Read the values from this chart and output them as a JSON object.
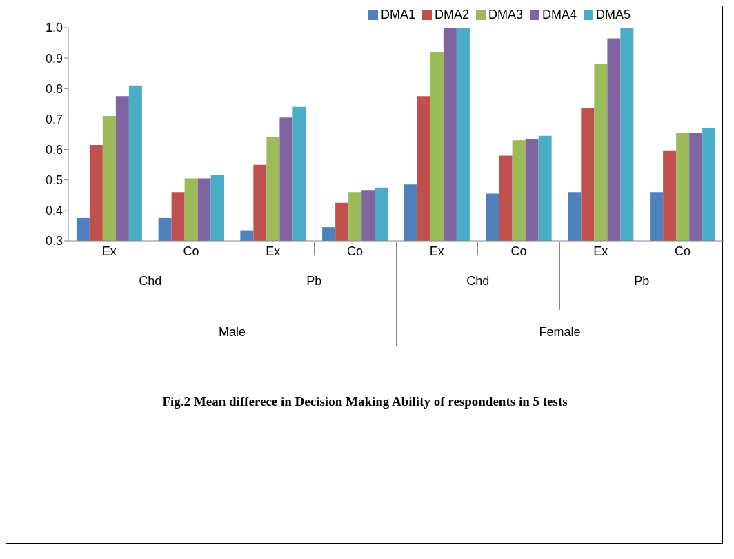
{
  "chart_data": {
    "type": "bar",
    "categories": [
      "Ex",
      "Co",
      "Ex",
      "Co",
      "Ex",
      "Co",
      "Ex",
      "Co"
    ],
    "series": [
      {
        "name": "DMA1",
        "color": "#4f81bd",
        "values": [
          0.375,
          0.375,
          0.335,
          0.345,
          0.485,
          0.455,
          0.46,
          0.46
        ]
      },
      {
        "name": "DMA2",
        "color": "#c0504d",
        "values": [
          0.615,
          0.46,
          0.55,
          0.425,
          0.775,
          0.58,
          0.735,
          0.595
        ]
      },
      {
        "name": "DMA3",
        "color": "#9bbb59",
        "values": [
          0.71,
          0.505,
          0.64,
          0.46,
          0.92,
          0.63,
          0.88,
          0.655
        ]
      },
      {
        "name": "DMA4",
        "color": "#8064a2",
        "values": [
          0.775,
          0.505,
          0.705,
          0.465,
          1.0,
          0.635,
          0.965,
          0.655
        ]
      },
      {
        "name": "DMA5",
        "color": "#4bacc6",
        "values": [
          0.81,
          0.515,
          0.74,
          0.475,
          1.0,
          0.645,
          1.0,
          0.67
        ]
      }
    ],
    "ylim": [
      0.3,
      1.0
    ],
    "yticks": [
      0.3,
      0.4,
      0.5,
      0.6,
      0.7,
      0.8,
      0.9,
      {
        "value": 1.0,
        "label": "1.0"
      }
    ],
    "grid": false,
    "legend": "top",
    "annotations": [
      "Chd",
      "Pb",
      "Chd",
      "Pb",
      "Male",
      "Female",
      "Fig.2 Mean differece in Decision Making Ability of respondents in 5 tests"
    ]
  }
}
